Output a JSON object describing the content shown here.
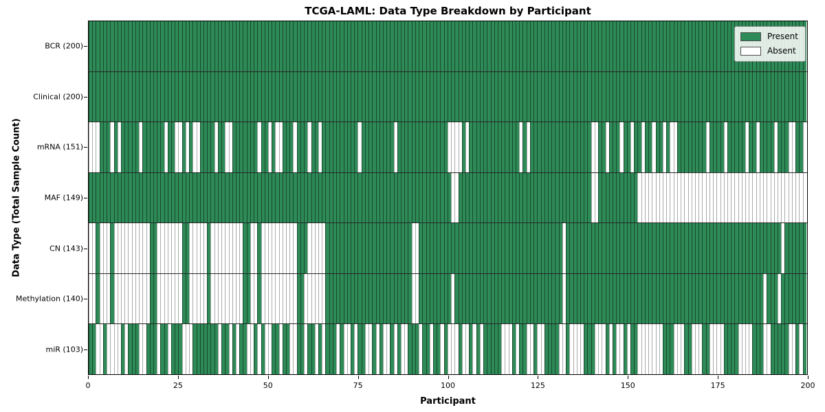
{
  "title": "TCGA-LAML: Data Type Breakdown by Participant",
  "x_axis": {
    "label": "Participant",
    "ticks": [
      0,
      25,
      50,
      75,
      100,
      125,
      150,
      175,
      200
    ],
    "range": [
      0,
      200
    ]
  },
  "y_axis": {
    "label": "Data Type (Total Sample Count)"
  },
  "legend": {
    "present_label": "Present",
    "absent_label": "Absent",
    "position": "upper right"
  },
  "colors": {
    "present": "#2e8b57",
    "absent": "#ffffff",
    "row_divider": "#262626",
    "frame": "#000000"
  },
  "chart_data": {
    "type": "heatmap",
    "title": "TCGA-LAML: Data Type Breakdown by Participant",
    "xlabel": "Participant",
    "ylabel": "Data Type (Total Sample Count)",
    "x_range": [
      0,
      200
    ],
    "n_participants": 200,
    "grid": false,
    "legend_entries": [
      "Present",
      "Absent"
    ],
    "encoding": "presence strings: one char per participant 0-199; 1=Present (green), 0=Absent (white)",
    "rows": [
      {
        "label": "BCR (200)",
        "name": "BCR",
        "present_count": 200,
        "presence": "11111111111111111111111111111111111111111111111111111111111111111111111111111111111111111111111111111111111111111111111111111111111111111111111111111111111111111111111111111111111111111111111111111111"
      },
      {
        "label": "Clinical (200)",
        "name": "Clinical",
        "present_count": 200,
        "presence": "11111111111111111111111111111111111111111111111111111111111111111111111111111111111111111111111111111111111111111111111111111111111111111111111111111111111111111111111111111111111111111111111111111111"
      },
      {
        "label": "mRNA (151)",
        "name": "mRNA",
        "present_count": 151,
        "presence": "00011101011111011111101100101001111011001111111011010011101110110111111111101111111110111111111111110000101111111111111101011111111111111111001101110110110110110100111111110111101111101101111011100110"
      },
      {
        "label": "MAF (149)",
        "name": "MAF",
        "present_count": 149,
        "presence": "11111111111111111111111111111111111111111111111111111111111111111111111111111111111111111111111111111001111111111111111111111111111111111111001111111111100000000000000000000000000000000000000000000000"
      },
      {
        "label": "CN (143)",
        "name": "CN",
        "present_count": 143,
        "presence": "00100010000000000110000000110000010000000001100100000000001110000011111111111111111111111100111111111111111111111111111111111111111101111111111111111111111111111111111111111111111111111111111110111111"
      },
      {
        "label": "Methylation (140)",
        "name": "Methylation",
        "present_count": 140,
        "presence": "00100010000000000110000000110000010000000001100100000000001100000011111111111111111111111100111111111011111111111111111111111111111101111111111111111111111111111111111111111111111111111111011101111111"
      },
      {
        "label": "miR (103)",
        "name": "miR",
        "present_count": 103,
        "presence": "11001000010111001110110111000111111101101011001010011011001101101011101001011001010010100111011011010001001010111110001011001001111001000011100010100101100000001110001100011000011110000111001111100101"
      }
    ]
  }
}
